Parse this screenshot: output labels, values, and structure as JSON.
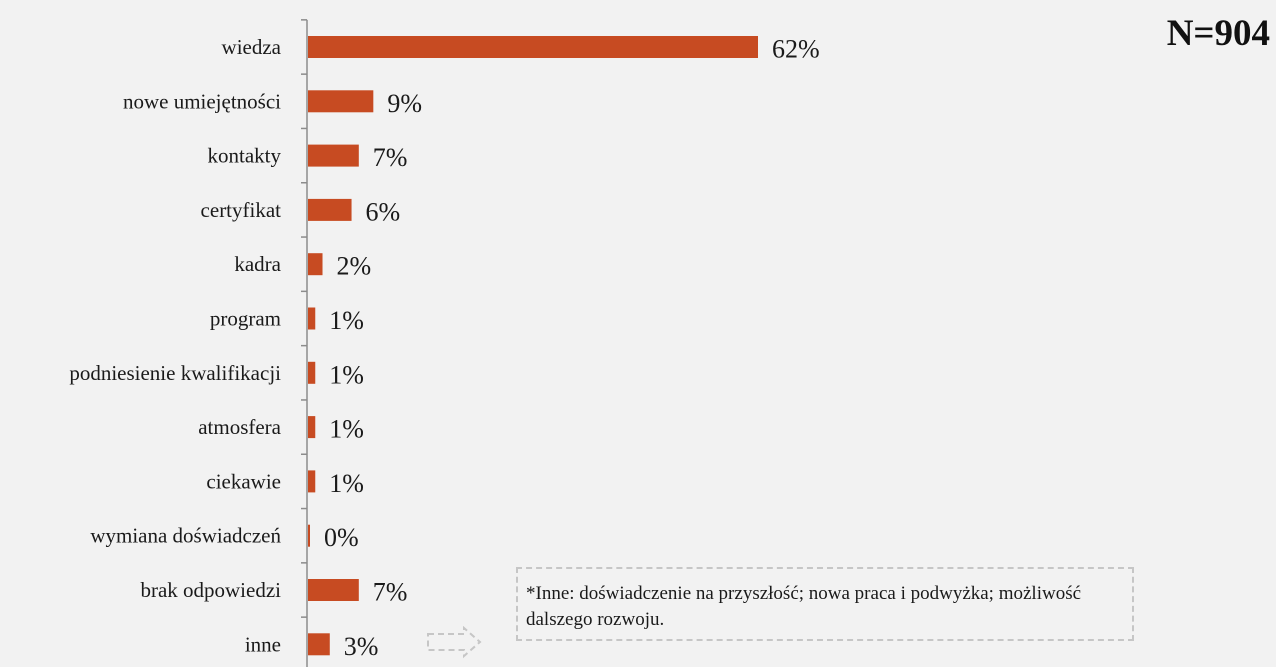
{
  "sample_size": "N=904",
  "footnote": "*Inne: doświadczenie na przyszłość; nowa praca i podwyżka; możliwość dalszego rozwoju.",
  "colors": {
    "bar": "#c74b22",
    "axis": "#8c8c8c",
    "background": "#f2f2f2"
  },
  "chart_data": {
    "type": "bar",
    "orientation": "horizontal",
    "categories": [
      "wiedza",
      "nowe umiejętności",
      "kontakty",
      "certyfikat",
      "kadra",
      "program",
      "podniesienie kwalifikacji",
      "atmosfera",
      "ciekawie",
      "wymiana doświadczeń",
      "brak odpowiedzi",
      "inne"
    ],
    "values": [
      62,
      9,
      7,
      6,
      2,
      1,
      1,
      1,
      1,
      0,
      7,
      3
    ],
    "value_labels": [
      "62%",
      "9%",
      "7%",
      "6%",
      "2%",
      "1%",
      "1%",
      "1%",
      "1%",
      "0%",
      "7%",
      "3%"
    ],
    "unit": "%",
    "grid": false,
    "legend": "none"
  }
}
